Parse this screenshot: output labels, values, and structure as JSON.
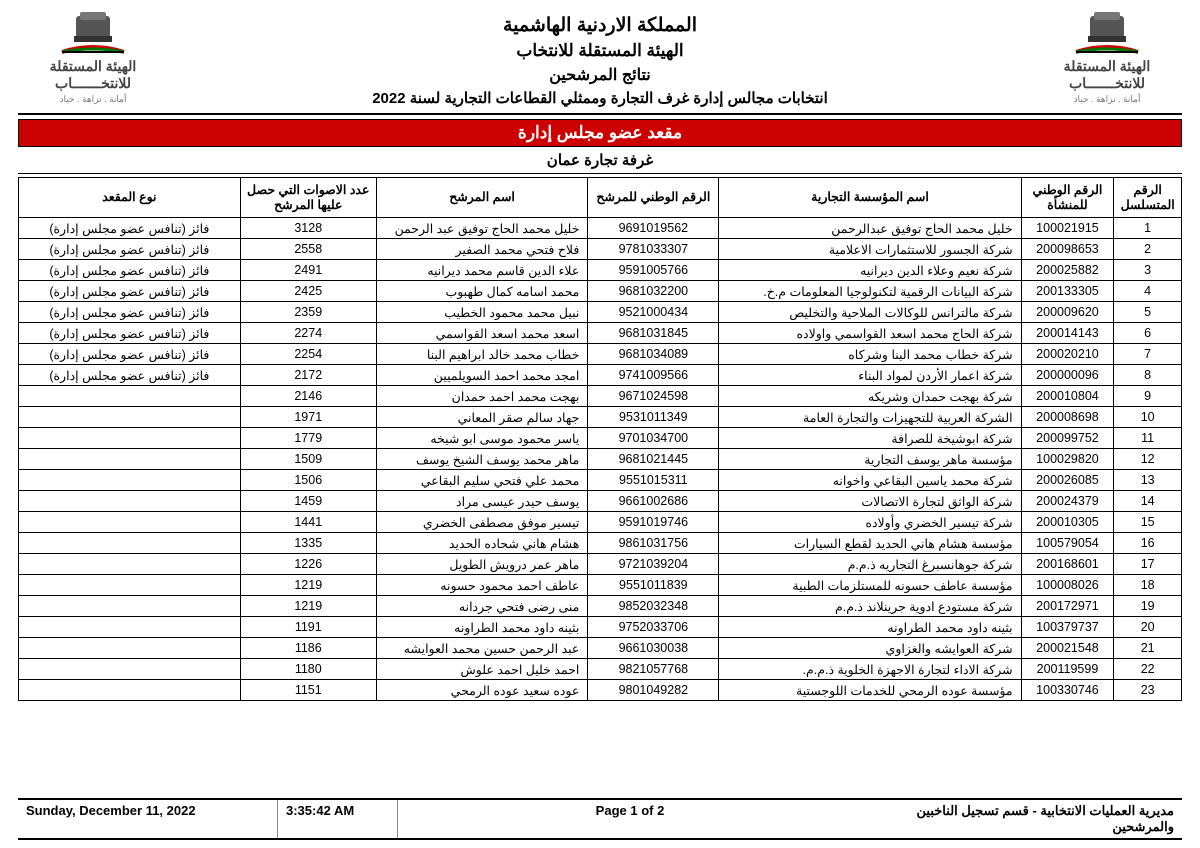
{
  "header": {
    "country": "المملكة الاردنية الهاشمية",
    "commission": "الهيئة المستقلة للانتخاب",
    "results": "نتائج المرشحين",
    "election": "انتخابات مجالس إدارة غرف التجارة وممثلي القطاعات التجارية لسنة 2022",
    "logo_text": "الهيئة المستقلة\nللانتخـــــــاب",
    "logo_sub": "أمانة . نزاهة . حياد"
  },
  "band": "مقعد عضو مجلس إدارة",
  "chamber": "غرفة تجارة عمان",
  "columns": {
    "seq": "الرقم\nالمتسلسل",
    "ent_nat": "الرقم الوطني\nللمنشأة",
    "ent_name": "اسم المؤسسة التجارية",
    "can_nat": "الرقم الوطني للمرشح",
    "can_name": "اسم المرشح",
    "votes": "عدد الاصوات التي حصل\nعليها المرشح",
    "seat": "نوع المقعد"
  },
  "winner_label": "فائز (تنافس عضو مجلس إدارة)",
  "rows": [
    {
      "seq": 1,
      "ent_nat": "100021915",
      "ent_name": "خليل محمد الحاج توفيق عبدالرحمن",
      "can_nat": "9691019562",
      "can_name": "خليل محمد الحاج توفيق عبد الرحمن",
      "votes": 3128,
      "winner": true
    },
    {
      "seq": 2,
      "ent_nat": "200098653",
      "ent_name": "شركة الجسور للاستثمارات الاعلامية",
      "can_nat": "9781033307",
      "can_name": "فلاح فتحي محمد الصفير",
      "votes": 2558,
      "winner": true
    },
    {
      "seq": 3,
      "ent_nat": "200025882",
      "ent_name": "شركة نعيم وعلاء الدين ديرانيه",
      "can_nat": "9591005766",
      "can_name": "علاء الدين قاسم محمد ديرانيه",
      "votes": 2491,
      "winner": true
    },
    {
      "seq": 4,
      "ent_nat": "200133305",
      "ent_name": "شركة البيانات الرقمية لتكنولوجيا المعلومات م.خ.",
      "can_nat": "9681032200",
      "can_name": "محمد اسامه كمال طهبوب",
      "votes": 2425,
      "winner": true
    },
    {
      "seq": 5,
      "ent_nat": "200009620",
      "ent_name": "شركة مالترانس للوكالات الملاحية والتخليص",
      "can_nat": "9521000434",
      "can_name": "نبيل محمد محمود الخطيب",
      "votes": 2359,
      "winner": true
    },
    {
      "seq": 6,
      "ent_nat": "200014143",
      "ent_name": "شركة الحاج محمد اسعد القواسمي واولاده",
      "can_nat": "9681031845",
      "can_name": "اسعد محمد اسعد القواسمي",
      "votes": 2274,
      "winner": true
    },
    {
      "seq": 7,
      "ent_nat": "200020210",
      "ent_name": "شركة خطاب محمد البنا وشركاه",
      "can_nat": "9681034089",
      "can_name": "خطاب محمد خالد ابراهيم البنا",
      "votes": 2254,
      "winner": true
    },
    {
      "seq": 8,
      "ent_nat": "200000096",
      "ent_name": "شركة اعمار الأردن لمواد البناء",
      "can_nat": "9741009566",
      "can_name": "امجد محمد احمد السويلميين",
      "votes": 2172,
      "winner": true
    },
    {
      "seq": 9,
      "ent_nat": "200010804",
      "ent_name": "شركة بهجت حمدان وشريكه",
      "can_nat": "9671024598",
      "can_name": "بهجت محمد احمد حمدان",
      "votes": 2146,
      "winner": false
    },
    {
      "seq": 10,
      "ent_nat": "200008698",
      "ent_name": "الشركة العربية للتجهيزات والتجارة العامة",
      "can_nat": "9531011349",
      "can_name": "جهاد سالم صقر المعاني",
      "votes": 1971,
      "winner": false
    },
    {
      "seq": 11,
      "ent_nat": "200099752",
      "ent_name": "شركة ابوشيخة للصرافة",
      "can_nat": "9701034700",
      "can_name": "ياسر محمود موسى ابو شيخه",
      "votes": 1779,
      "winner": false
    },
    {
      "seq": 12,
      "ent_nat": "100029820",
      "ent_name": "مؤسسة ماهر يوسف التجارية",
      "can_nat": "9681021445",
      "can_name": "ماهر محمد يوسف الشيخ يوسف",
      "votes": 1509,
      "winner": false
    },
    {
      "seq": 13,
      "ent_nat": "200026085",
      "ent_name": "شركة محمد ياسين البقاعي واخوانه",
      "can_nat": "9551015311",
      "can_name": "محمد علي فتحي سليم البقاعي",
      "votes": 1506,
      "winner": false
    },
    {
      "seq": 14,
      "ent_nat": "200024379",
      "ent_name": "شركة الواثق لتجارة الاتصالات",
      "can_nat": "9661002686",
      "can_name": "يوسف حيدر عيسى مراد",
      "votes": 1459,
      "winner": false
    },
    {
      "seq": 15,
      "ent_nat": "200010305",
      "ent_name": "شركة تيسير الخضري وأولاده",
      "can_nat": "9591019746",
      "can_name": "تيسير موفق مصطفى الخضري",
      "votes": 1441,
      "winner": false
    },
    {
      "seq": 16,
      "ent_nat": "100579054",
      "ent_name": "مؤسسة هشام هاني الحديد لقطع السيارات",
      "can_nat": "9861031756",
      "can_name": "هشام هاني شحاده الحديد",
      "votes": 1335,
      "winner": false
    },
    {
      "seq": 17,
      "ent_nat": "200168601",
      "ent_name": "شركة جوهانسبرغ التجاريه ذ.م.م",
      "can_nat": "9721039204",
      "can_name": "ماهر عمر درويش الطويل",
      "votes": 1226,
      "winner": false
    },
    {
      "seq": 18,
      "ent_nat": "100008026",
      "ent_name": "مؤسسة عاطف حسونه للمستلزمات الطبية",
      "can_nat": "9551011839",
      "can_name": "عاطف احمد محمود حسونه",
      "votes": 1219,
      "winner": false
    },
    {
      "seq": 19,
      "ent_nat": "200172971",
      "ent_name": "شركة مستودع ادوية جرينلاند ذ.م.م",
      "can_nat": "9852032348",
      "can_name": "منى رضى فتحي جردانه",
      "votes": 1219,
      "winner": false
    },
    {
      "seq": 20,
      "ent_nat": "100379737",
      "ent_name": "بثينه داود محمد الطراونه",
      "can_nat": "9752033706",
      "can_name": "بثينه داود محمد الطراونه",
      "votes": 1191,
      "winner": false
    },
    {
      "seq": 21,
      "ent_nat": "200021548",
      "ent_name": "شركة العوايشه والغزاوي",
      "can_nat": "9661030038",
      "can_name": "عبد الرحمن حسين محمد العوايشه",
      "votes": 1186,
      "winner": false
    },
    {
      "seq": 22,
      "ent_nat": "200119599",
      "ent_name": "شركة الاداء لتجارة الاجهزة الخلوية ذ.م.م.",
      "can_nat": "9821057768",
      "can_name": "احمد خليل احمد علوش",
      "votes": 1180,
      "winner": false
    },
    {
      "seq": 23,
      "ent_nat": "100330746",
      "ent_name": "مؤسسة عوده الرمحي للخدمات اللوجستية",
      "can_nat": "9801049282",
      "can_name": "عوده سعيد عوده الرمحي",
      "votes": 1151,
      "winner": false
    }
  ],
  "footer": {
    "date": "Sunday, December 11, 2022",
    "time": "3:35:42 AM",
    "page": "Page 1 of 2",
    "dept": "مديرية العمليات الانتخابية - قسم تسجيل الناخبين والمرشحين"
  },
  "colors": {
    "band_bg": "#c00000",
    "band_fg": "#ffffff"
  }
}
